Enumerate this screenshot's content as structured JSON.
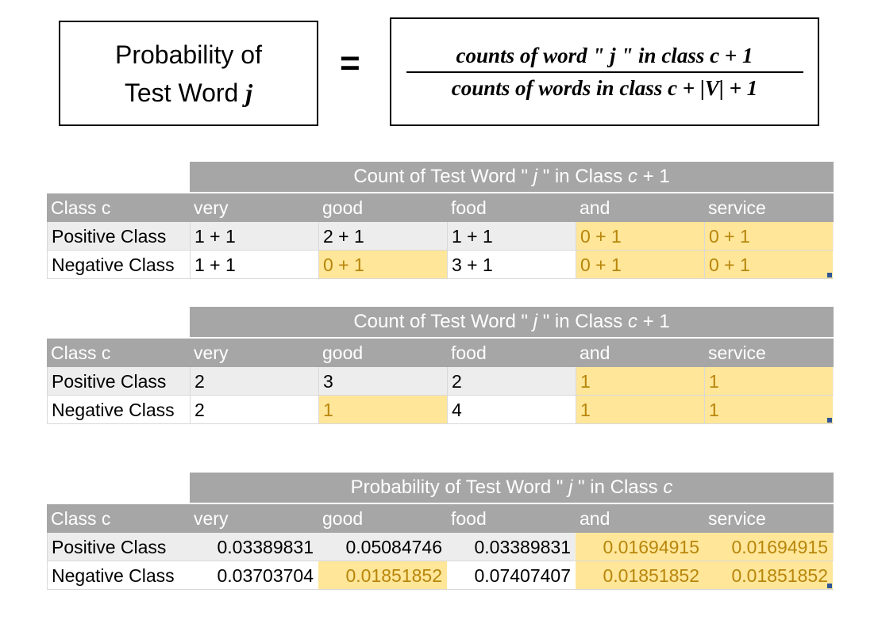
{
  "formula": {
    "lhs_line1": "Probability of",
    "lhs_line2_text": "Test Word ",
    "lhs_line2_var": "j",
    "equals": "=",
    "numerator": "counts of word \" j \" in class c + 1",
    "denominator": "counts of words in class c + |V| + 1"
  },
  "tables": [
    {
      "caption_prefix": "Count of Test Word \" ",
      "caption_var": "j",
      "caption_mid": " \" in Class ",
      "caption_var2": "c",
      "caption_suffix": " + 1",
      "header": [
        "Class c",
        "very",
        "good",
        "food",
        "and",
        "service"
      ],
      "rows": [
        {
          "label": "Positive Class",
          "values": [
            "1 + 1",
            "2 + 1",
            "1 + 1",
            "0 + 1",
            "0 + 1"
          ]
        },
        {
          "label": "Negative Class",
          "values": [
            "1 + 1",
            "0 + 1",
            "3 + 1",
            "0 + 1",
            "0 + 1"
          ]
        }
      ]
    },
    {
      "caption_prefix": "Count of Test Word \" ",
      "caption_var": "j",
      "caption_mid": " \" in Class ",
      "caption_var2": "c",
      "caption_suffix": " + 1",
      "header": [
        "Class c",
        "very",
        "good",
        "food",
        "and",
        "service"
      ],
      "rows": [
        {
          "label": "Positive Class",
          "values": [
            "2",
            "3",
            "2",
            "1",
            "1"
          ]
        },
        {
          "label": "Negative Class",
          "values": [
            "2",
            "1",
            "4",
            "1",
            "1"
          ]
        }
      ]
    },
    {
      "caption_prefix": "Probability of Test Word \" ",
      "caption_var": "j",
      "caption_mid": " \" in Class ",
      "caption_var2": "c",
      "caption_suffix": "",
      "header": [
        "Class c",
        "very",
        "good",
        "food",
        "and",
        "service"
      ],
      "rows": [
        {
          "label": "Positive Class",
          "values": [
            "0.03389831",
            "0.05084746",
            "0.03389831",
            "0.01694915",
            "0.01694915"
          ]
        },
        {
          "label": "Negative Class",
          "values": [
            "0.03703704",
            "0.01851852",
            "0.07407407",
            "0.01851852",
            "0.01851852"
          ]
        }
      ]
    }
  ],
  "highlight_color": "#ffe699"
}
